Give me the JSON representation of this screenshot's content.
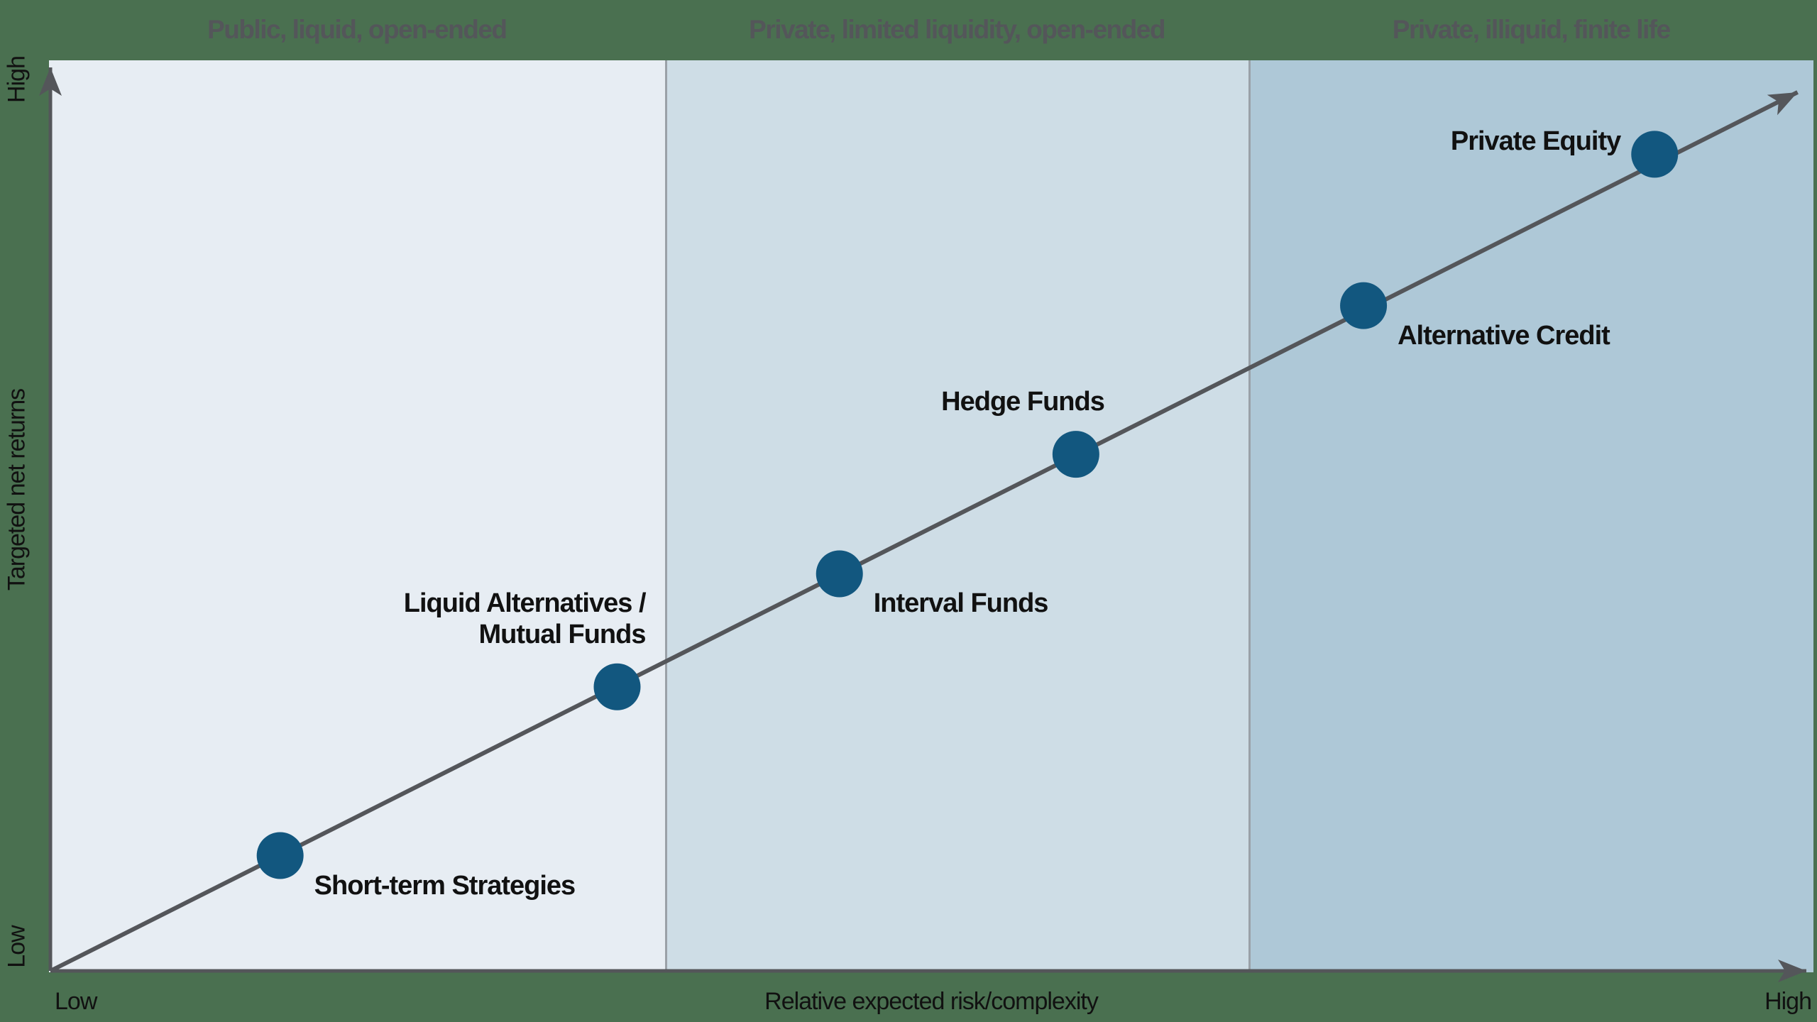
{
  "page": {
    "background_color": "#4a7050"
  },
  "chart_data": {
    "type": "scatter",
    "title": "",
    "x_axis": {
      "title": "Relative expected risk/complexity",
      "min_label": "Low",
      "max_label": "High"
    },
    "y_axis": {
      "title": "Targeted net returns",
      "min_label": "Low",
      "max_label": "High"
    },
    "bands": [
      {
        "label": "Public, liquid, open-ended",
        "color": "#e7edf3",
        "width_frac": 0.349
      },
      {
        "label": "Private, limited liquidity, open-ended",
        "color": "#cedde6",
        "width_frac": 0.331
      },
      {
        "label": "Private, illiquid, finite life",
        "color": "#aec8d7",
        "width_frac": 0.32
      }
    ],
    "divider_color": "#9aa1a8",
    "axis_color": "#54565a",
    "point_color": "#12577f",
    "point_radius": 33,
    "trend_line": {
      "x1": 0,
      "y1": 0,
      "x2": 0.991,
      "y2": 0.965
    },
    "points": [
      {
        "label": "Short-term Strategies",
        "x": 0.131,
        "y": 0.128,
        "label_anchor": "right-below"
      },
      {
        "label": "Liquid Alternatives /\nMutual Funds",
        "x": 0.322,
        "y": 0.313,
        "label_anchor": "above-left"
      },
      {
        "label": "Interval Funds",
        "x": 0.448,
        "y": 0.437,
        "label_anchor": "right-below"
      },
      {
        "label": "Hedge Funds",
        "x": 0.582,
        "y": 0.568,
        "label_anchor": "above-left"
      },
      {
        "label": "Alternative Credit",
        "x": 0.745,
        "y": 0.731,
        "label_anchor": "right-below"
      },
      {
        "label": "Private Equity",
        "x": 0.91,
        "y": 0.897,
        "label_anchor": "left"
      }
    ]
  }
}
